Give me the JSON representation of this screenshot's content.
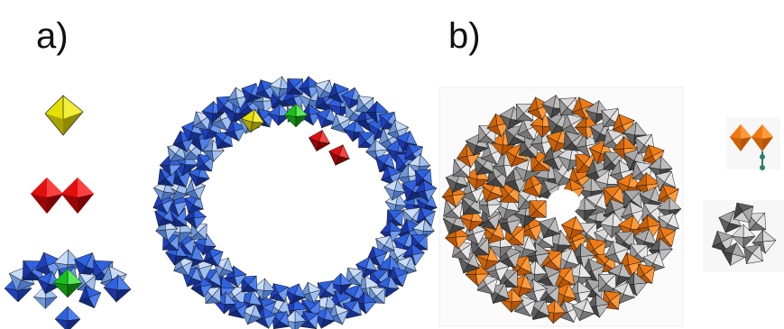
{
  "panel_a": {
    "label": "a)",
    "colors": {
      "blue_dark": "#1f3fbf",
      "blue_mid": "#2f62e0",
      "blue_light": "#9fc0f0",
      "yellow": "#e6e000",
      "red": "#e01010",
      "green": "#19c019"
    }
  },
  "panel_b": {
    "label": "b)",
    "colors": {
      "orange": "#ef7a14",
      "orange_dark": "#b95406",
      "grey_light": "#d8d8d8",
      "grey_mid": "#a9a9a9",
      "grey_dark": "#5f5f5f",
      "teal": "#2d7f6d"
    }
  }
}
